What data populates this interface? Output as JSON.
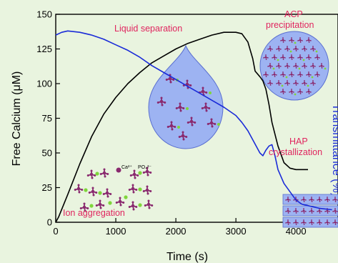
{
  "chart_data": {
    "type": "line",
    "xlabel": "Time (s)",
    "ylabel": "Free Calcium (μM)",
    "ylabel_right": "Transmittance (%)",
    "xlim": [
      0,
      4700
    ],
    "ylim": [
      0,
      150
    ],
    "x_ticks": [
      0,
      1000,
      2000,
      3000,
      4000
    ],
    "y_ticks": [
      0,
      25,
      50,
      75,
      100,
      125,
      150
    ],
    "grid": false,
    "series": [
      {
        "color": "#000000",
        "x": [
          0,
          50,
          200,
          400,
          600,
          800,
          1000,
          1200,
          1400,
          1600,
          1800,
          2000,
          2200,
          2400,
          2600,
          2800,
          2900,
          3000,
          3100,
          3200,
          3280,
          3320,
          3400,
          3450,
          3500,
          3550,
          3600,
          3700,
          3800,
          3900,
          4000,
          4100,
          4200
        ],
        "y": [
          0,
          4,
          20,
          42,
          62,
          78,
          90,
          100,
          108,
          115,
          120,
          125,
          129,
          132,
          135,
          137,
          137,
          137,
          136,
          130,
          118,
          109,
          105,
          102,
          96,
          85,
          72,
          55,
          43,
          39,
          38,
          38,
          38
        ]
      },
      {
        "color": "#1a2bd8",
        "x": [
          0,
          100,
          200,
          400,
          600,
          800,
          1000,
          1200,
          1400,
          1600,
          1800,
          2000,
          2200,
          2400,
          2600,
          2800,
          3000,
          3100,
          3200,
          3300,
          3400,
          3450,
          3500,
          3550,
          3600,
          3650,
          3700,
          3800,
          3900,
          4000,
          4100,
          4200,
          4300,
          4400,
          4600
        ],
        "y": [
          135,
          137,
          138,
          137,
          135,
          132,
          128,
          124,
          119,
          113,
          108,
          103,
          98,
          93,
          88,
          83,
          77,
          72,
          66,
          58,
          50,
          48,
          52,
          55,
          56,
          48,
          38,
          28,
          22,
          16,
          13,
          12,
          11,
          10,
          9
        ]
      }
    ],
    "annotations": [
      "Liquid separation",
      "ACP",
      "precipitation",
      "HAP",
      "crystallization",
      "Ion aggregation",
      "Ca²⁺",
      "PO₄³⁻"
    ]
  },
  "colors": {
    "background": "#e9f4df",
    "calcium_line": "#000000",
    "transmittance_line": "#1a2bd8",
    "annotation_text": "#e0245e",
    "droplet_fill": "#9db3f2",
    "molecule": "#8a2a6f",
    "calcium_ion": "#7fd63b"
  }
}
